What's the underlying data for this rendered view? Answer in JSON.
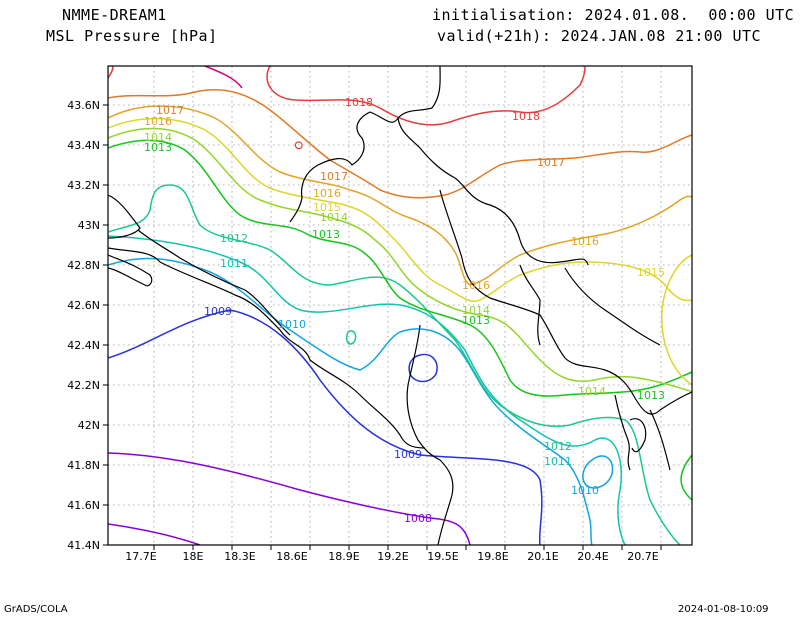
{
  "header": {
    "model": "NMME-DREAM1",
    "field": "MSL Pressure [hPa]",
    "init": "initialisation: 2024.01.08.  00:00 UTC",
    "valid": "valid(+21h): 2024.JAN.08 21:00 UTC"
  },
  "footer": {
    "left": "GrADS/COLA",
    "right": "2024-01-08-10:09"
  },
  "axes": {
    "lon_ticks": [
      "17.7E",
      "18E",
      "18.3E",
      "18.6E",
      "18.9E",
      "19.2E",
      "19.5E",
      "19.8E",
      "20.1E",
      "20.4E",
      "20.7E"
    ],
    "lat_ticks": [
      "43.6N",
      "43.4N",
      "43.2N",
      "43N",
      "42.8N",
      "42.6N",
      "42.4N",
      "42.2N",
      "42N",
      "41.8N",
      "41.6N",
      "41.4N"
    ],
    "grid": true
  },
  "contours": [
    {
      "level": "1008",
      "color": "#8a00d4"
    },
    {
      "level": "1009",
      "color": "#2633d9"
    },
    {
      "level": "1010",
      "color": "#0fa5e0"
    },
    {
      "level": "1011",
      "color": "#13c2b0"
    },
    {
      "level": "1012",
      "color": "#19c98a"
    },
    {
      "level": "1013",
      "color": "#16c41a"
    },
    {
      "level": "1014",
      "color": "#92d629"
    },
    {
      "level": "1015",
      "color": "#dcd62b"
    },
    {
      "level": "1016",
      "color": "#e0a42a"
    },
    {
      "level": "1017",
      "color": "#e07a28"
    },
    {
      "level": "1018",
      "color": "#e63c3c"
    },
    {
      "level": "1019",
      "color": "#d4007a"
    }
  ]
}
